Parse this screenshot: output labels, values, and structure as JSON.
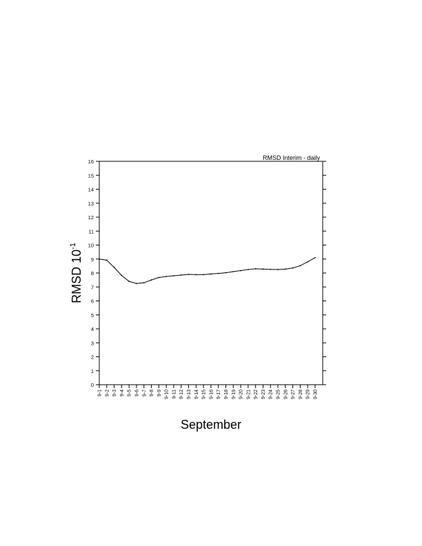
{
  "chart_data": {
    "type": "line",
    "title": "RMSD Interim - daily",
    "xlabel": "September",
    "ylabel": "RMSD 10",
    "ylabel_exponent": "-1",
    "ylim": [
      0,
      16
    ],
    "yticks": [
      0,
      1,
      2,
      3,
      4,
      5,
      6,
      7,
      8,
      9,
      10,
      11,
      12,
      13,
      14,
      15,
      16
    ],
    "grid": false,
    "categories": [
      "9-1",
      "9-2",
      "9-3",
      "9-4",
      "9-5",
      "9-6",
      "9-7",
      "9-8",
      "9-9",
      "9-10",
      "9-11",
      "9-12",
      "9-13",
      "9-14",
      "9-15",
      "9-16",
      "9-17",
      "9-18",
      "9-19",
      "9-20",
      "9-21",
      "9-22",
      "9-23",
      "9-24",
      "9-25",
      "9-26",
      "9-27",
      "9-28",
      "9-29",
      "9-30"
    ],
    "values": [
      9.0,
      8.92,
      8.4,
      7.82,
      7.4,
      7.25,
      7.3,
      7.5,
      7.68,
      7.75,
      7.8,
      7.85,
      7.9,
      7.88,
      7.88,
      7.93,
      7.97,
      8.02,
      8.1,
      8.17,
      8.25,
      8.3,
      8.28,
      8.26,
      8.25,
      8.28,
      8.36,
      8.52,
      8.8,
      9.1
    ],
    "line_color": "#000000"
  }
}
